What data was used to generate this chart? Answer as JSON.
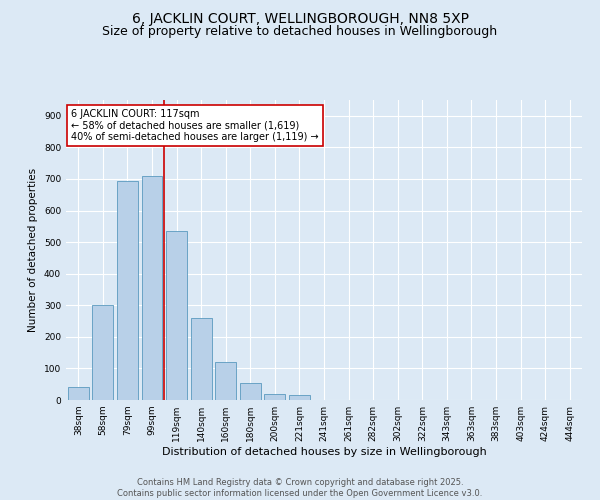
{
  "title": "6, JACKLIN COURT, WELLINGBOROUGH, NN8 5XP",
  "subtitle": "Size of property relative to detached houses in Wellingborough",
  "xlabel": "Distribution of detached houses by size in Wellingborough",
  "ylabel": "Number of detached properties",
  "categories": [
    "38sqm",
    "58sqm",
    "79sqm",
    "99sqm",
    "119sqm",
    "140sqm",
    "160sqm",
    "180sqm",
    "200sqm",
    "221sqm",
    "241sqm",
    "261sqm",
    "282sqm",
    "302sqm",
    "322sqm",
    "343sqm",
    "363sqm",
    "383sqm",
    "403sqm",
    "424sqm",
    "444sqm"
  ],
  "values": [
    40,
    300,
    695,
    710,
    535,
    260,
    120,
    55,
    20,
    15,
    0,
    0,
    0,
    0,
    0,
    0,
    0,
    0,
    0,
    0,
    0
  ],
  "bar_color": "#b8d0e8",
  "bar_edge_color": "#5a9abf",
  "highlight_line_color": "#cc0000",
  "annotation_text": "6 JACKLIN COURT: 117sqm\n← 58% of detached houses are smaller (1,619)\n40% of semi-detached houses are larger (1,119) →",
  "annotation_box_color": "#ffffff",
  "annotation_box_edge": "#cc0000",
  "bg_color": "#dce9f5",
  "plot_bg_color": "#dce9f5",
  "grid_color": "#ffffff",
  "footer_text": "Contains HM Land Registry data © Crown copyright and database right 2025.\nContains public sector information licensed under the Open Government Licence v3.0.",
  "ylim": [
    0,
    950
  ],
  "yticks": [
    0,
    100,
    200,
    300,
    400,
    500,
    600,
    700,
    800,
    900
  ],
  "title_fontsize": 10,
  "subtitle_fontsize": 9,
  "xlabel_fontsize": 8,
  "ylabel_fontsize": 7.5,
  "tick_fontsize": 6.5,
  "footer_fontsize": 6,
  "annotation_fontsize": 7
}
